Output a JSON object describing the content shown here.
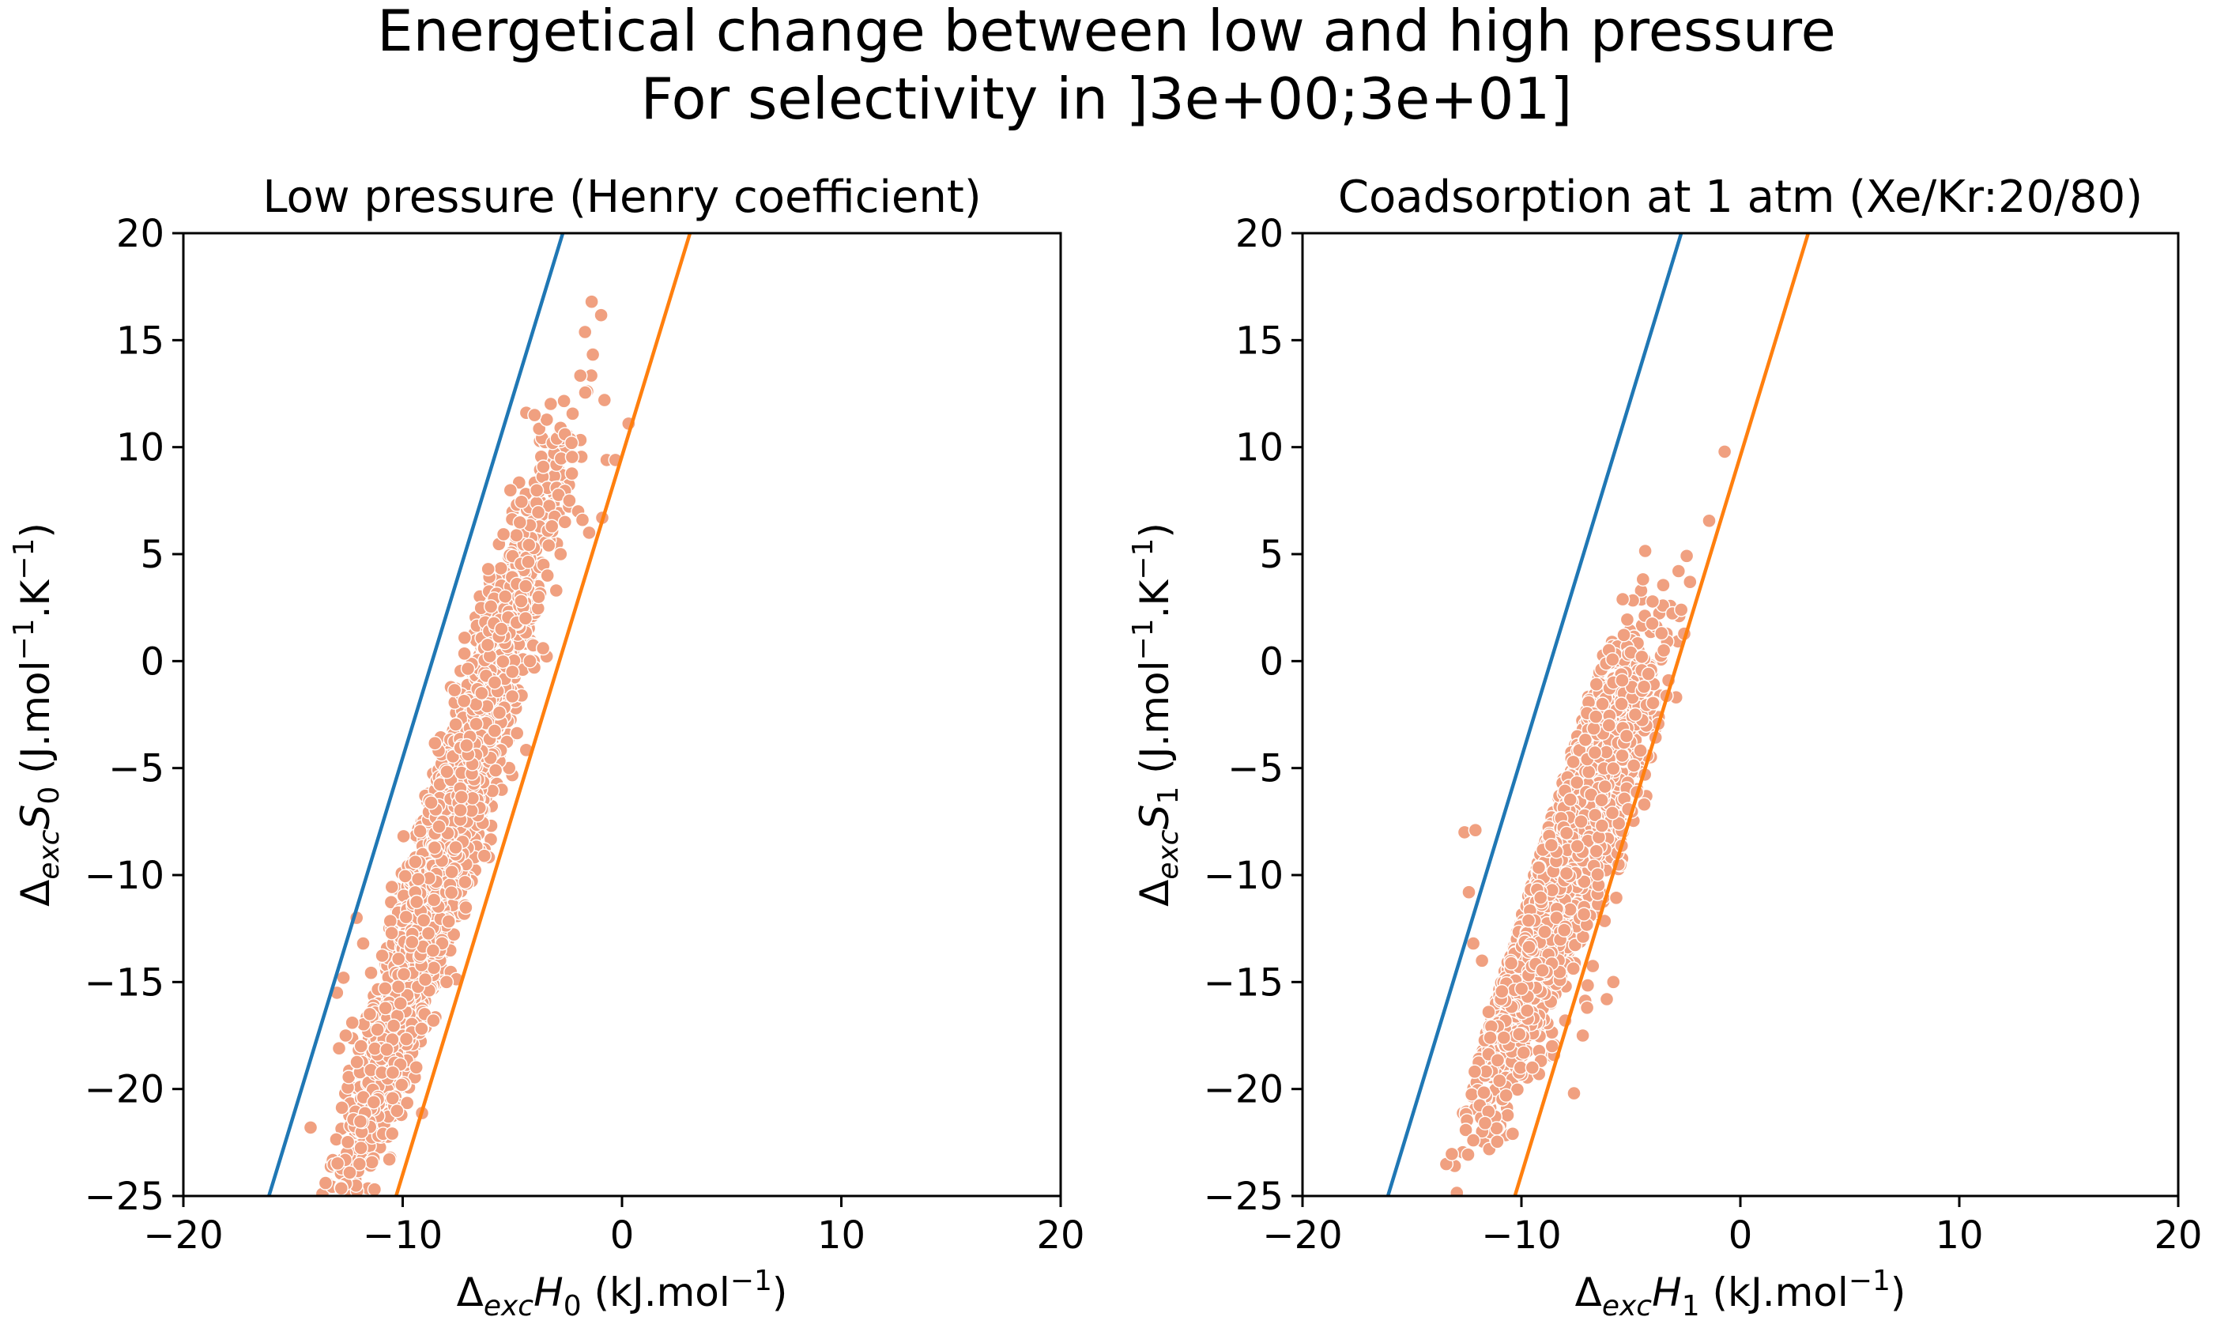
{
  "figure": {
    "title_line1": "Energetical change between low and high pressure",
    "title_line2": "For selectivity in ]3e+00;3e+01]"
  },
  "colors": {
    "scatter": "#f0a080",
    "scatter_edge": "#ffffff",
    "line_blue": "#1f77b4",
    "line_orange": "#ff7f0e",
    "axes": "#000000"
  },
  "chart_data": [
    {
      "type": "scatter",
      "title": "Low pressure (Henry coefficient)",
      "xlabel": {
        "prefix": "Δ",
        "sub1": "exc",
        "var": "H",
        "sub2": "0",
        "unit": " (kJ.mol",
        "sup": "−1",
        "unit_end": ")"
      },
      "ylabel": {
        "prefix": "Δ",
        "sub1": "exc",
        "var": "S",
        "sub2": "0",
        "unit": " (J.mol",
        "sup1": "−1",
        "mid": ".K",
        "sup2": "−1",
        "unit_end": ")"
      },
      "xlim": [
        -20,
        20
      ],
      "ylim": [
        -25,
        20
      ],
      "xticks": [
        -20,
        -10,
        0,
        10,
        20
      ],
      "xtick_labels": [
        "−20",
        "−10",
        "0",
        "10",
        "20"
      ],
      "yticks": [
        -25,
        -20,
        -15,
        -10,
        -5,
        0,
        5,
        10,
        15,
        20
      ],
      "ytick_labels": [
        "−25",
        "−20",
        "−15",
        "−10",
        "−5",
        "0",
        "5",
        "10",
        "15",
        "20"
      ],
      "grid": false,
      "lines": [
        {
          "color": "blue",
          "x": [
            -16.1,
            -2.7
          ],
          "y": [
            -25,
            20
          ]
        },
        {
          "color": "orange",
          "x": [
            -10.3,
            3.1
          ],
          "y": [
            -25,
            20
          ]
        }
      ],
      "cloud": {
        "count": 3200,
        "x_center": -8.0,
        "x_spread": 2.2,
        "slope": 3.36,
        "y_center": -8.5,
        "y_spread": 2.3,
        "band_lo": -16.1,
        "band_hi": -10.3
      },
      "series": [
        {
          "points": [
            [
              -14.2,
              -21.8
            ],
            [
              -12.9,
              -18.1
            ],
            [
              -12.6,
              -17.5
            ],
            [
              -11.9,
              -18.0
            ],
            [
              -12.3,
              -16.9
            ],
            [
              -11.5,
              -16.5
            ],
            [
              -10.1,
              -16.0
            ],
            [
              -9.0,
              -16.5
            ],
            [
              -8.6,
              -16.8
            ],
            [
              -8.0,
              -15.0
            ],
            [
              -13.0,
              -15.5
            ],
            [
              -12.7,
              -14.8
            ],
            [
              -11.8,
              -13.2
            ],
            [
              -12.1,
              -12.0
            ],
            [
              -6.1,
              4.3
            ],
            [
              -4.8,
              1.8
            ],
            [
              -4.4,
              2.0
            ],
            [
              -4.6,
              2.8
            ],
            [
              -5.5,
              1.5
            ],
            [
              -3.8,
              3.0
            ],
            [
              -3.4,
              4.0
            ],
            [
              -3.2,
              6.3
            ],
            [
              -2.8,
              5.0
            ],
            [
              -2.6,
              6.5
            ],
            [
              -2.4,
              7.5
            ],
            [
              -2.0,
              7.0
            ],
            [
              -1.8,
              6.6
            ],
            [
              -2.8,
              10.9
            ],
            [
              -2.6,
              10.6
            ],
            [
              -2.3,
              10.2
            ],
            [
              -0.8,
              12.2
            ],
            [
              -0.7,
              9.4
            ],
            [
              -0.3,
              9.4
            ],
            [
              0.3,
              11.1
            ],
            [
              -0.9,
              6.7
            ],
            [
              -1.5,
              6.0
            ],
            [
              -3.0,
              3.3
            ],
            [
              -4.0,
              -0.3
            ],
            [
              -3.6,
              0.6
            ],
            [
              -4.2,
              0.0
            ],
            [
              -5.0,
              -0.5
            ],
            [
              -5.8,
              -1.0
            ],
            [
              -6.4,
              -1.5
            ]
          ]
        }
      ]
    },
    {
      "type": "scatter",
      "title": "Coadsorption at 1 atm (Xe/Kr:20/80)",
      "xlabel": {
        "prefix": "Δ",
        "sub1": "exc",
        "var": "H",
        "sub2": "1",
        "unit": " (kJ.mol",
        "sup": "−1",
        "unit_end": ")"
      },
      "ylabel": {
        "prefix": "Δ",
        "sub1": "exc",
        "var": "S",
        "sub2": "1",
        "unit": " (J.mol",
        "sup1": "−1",
        "mid": ".K",
        "sup2": "−1",
        "unit_end": ")"
      },
      "xlim": [
        -20,
        20
      ],
      "ylim": [
        -25,
        20
      ],
      "xticks": [
        -20,
        -10,
        0,
        10,
        20
      ],
      "xtick_labels": [
        "−20",
        "−10",
        "0",
        "10",
        "20"
      ],
      "yticks": [
        -25,
        -20,
        -15,
        -10,
        -5,
        0,
        5,
        10,
        15,
        20
      ],
      "ytick_labels": [
        "−25",
        "−20",
        "−15",
        "−10",
        "−5",
        "0",
        "5",
        "10",
        "15",
        "20"
      ],
      "grid": false,
      "lines": [
        {
          "color": "blue",
          "x": [
            -16.1,
            -2.7
          ],
          "y": [
            -25,
            20
          ]
        },
        {
          "color": "orange",
          "x": [
            -10.3,
            3.1
          ],
          "y": [
            -25,
            20
          ]
        }
      ],
      "cloud": {
        "count": 3000,
        "x_center": -8.4,
        "x_spread": 1.9,
        "slope": 2.1,
        "y_center": -10.0,
        "y_spread": 2.6,
        "band_lo": -13.5,
        "band_hi": -4.5
      },
      "series": [
        {
          "points": [
            [
              -12.2,
              -22.4
            ],
            [
              -10.7,
              -20.3
            ],
            [
              -7.6,
              -20.2
            ],
            [
              -9.2,
              -19.3
            ],
            [
              -9.9,
              -18.3
            ],
            [
              -9.5,
              -19.0
            ],
            [
              -8.6,
              -18.0
            ],
            [
              -7.2,
              -17.5
            ],
            [
              -8.0,
              -16.8
            ],
            [
              -7.0,
              -16.2
            ],
            [
              -10.8,
              -17.6
            ],
            [
              -11.5,
              -16.4
            ],
            [
              -6.1,
              -15.8
            ],
            [
              -5.8,
              -15.0
            ],
            [
              -12.6,
              -8.0
            ],
            [
              -12.1,
              -7.9
            ],
            [
              -12.4,
              -10.8
            ],
            [
              -12.2,
              -13.2
            ],
            [
              -11.8,
              -14.0
            ],
            [
              -5.0,
              0.4
            ],
            [
              -4.5,
              0.2
            ],
            [
              -3.6,
              1.3
            ],
            [
              -3.5,
              0.5
            ],
            [
              -2.7,
              2.4
            ],
            [
              -2.3,
              3.7
            ],
            [
              -4.4,
              -1.2
            ],
            [
              -5.8,
              -1.0
            ],
            [
              -6.3,
              -2.0
            ],
            [
              -6.6,
              -2.6
            ],
            [
              -4.8,
              -2.5
            ],
            [
              -4.2,
              -0.6
            ],
            [
              -5.4,
              -0.9
            ],
            [
              -6.0,
              -3.0
            ],
            [
              -5.2,
              -3.5
            ]
          ]
        }
      ]
    }
  ]
}
